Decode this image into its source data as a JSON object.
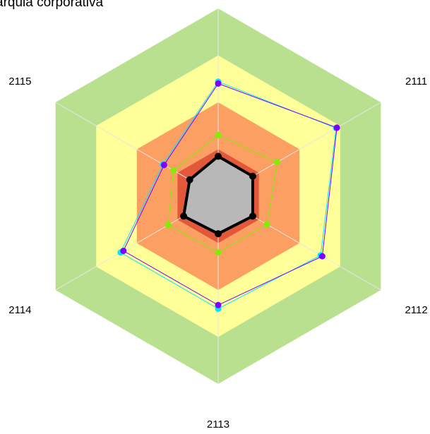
{
  "chart_data": {
    "type": "radar",
    "title": "arquia corporativa",
    "categories": [
      null,
      "2111",
      "2112",
      "2113",
      "2114",
      "2115"
    ],
    "rlim": [
      0,
      4
    ],
    "rticks": [
      1,
      2,
      3,
      4
    ],
    "band_colors": [
      "#e2583b",
      "#fc9f62",
      "#ffff99",
      "#b9e08f"
    ],
    "series": [
      {
        "color": "#00e5ff",
        "values": [
          2.44,
          2.9,
          2.52,
          2.4,
          2.4,
          1.36
        ]
      },
      {
        "color": "#8000ff",
        "values": [
          2.4,
          2.92,
          2.56,
          2.32,
          2.33,
          1.33
        ]
      },
      {
        "color": "#80ee00",
        "values": [
          1.3,
          1.45,
          1.2,
          1.2,
          1.23,
          1.1
        ]
      },
      {
        "color": "#000000",
        "fill": "#b8b8b8",
        "values": [
          0.85,
          0.85,
          0.85,
          0.8,
          0.85,
          0.7
        ]
      }
    ]
  }
}
